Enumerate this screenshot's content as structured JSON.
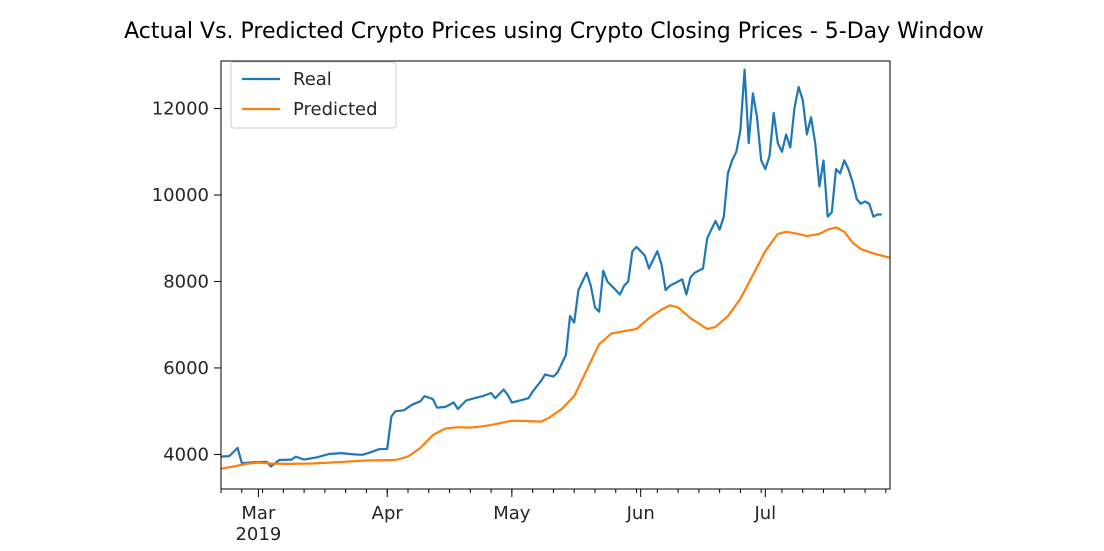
{
  "chart_data": {
    "type": "line",
    "title": "Actual Vs. Predicted Crypto Prices using Crypto Closing Prices - 5-Day Window",
    "xlabel": "",
    "ylabel": "",
    "xlim": [
      "2019-02-20",
      "2019-07-31"
    ],
    "ylim": [
      3200,
      13100
    ],
    "yticks": [
      4000,
      6000,
      8000,
      10000,
      12000
    ],
    "xticks": [
      {
        "date": "2019-03-01",
        "label": "Mar",
        "sublabel": "2019"
      },
      {
        "date": "2019-04-01",
        "label": "Apr"
      },
      {
        "date": "2019-05-01",
        "label": "May"
      },
      {
        "date": "2019-06-01",
        "label": "Jun"
      },
      {
        "date": "2019-07-01",
        "label": "Jul"
      }
    ],
    "grid": false,
    "legend": "top-left",
    "series": [
      {
        "name": "Real",
        "color": "#1f77b4",
        "points": [
          [
            "2019-02-20",
            3950
          ],
          [
            "2019-02-22",
            3960
          ],
          [
            "2019-02-24",
            4150
          ],
          [
            "2019-02-25",
            3800
          ],
          [
            "2019-02-28",
            3820
          ],
          [
            "2019-03-03",
            3830
          ],
          [
            "2019-03-04",
            3720
          ],
          [
            "2019-03-06",
            3870
          ],
          [
            "2019-03-09",
            3880
          ],
          [
            "2019-03-10",
            3950
          ],
          [
            "2019-03-12",
            3880
          ],
          [
            "2019-03-15",
            3930
          ],
          [
            "2019-03-18",
            4010
          ],
          [
            "2019-03-21",
            4030
          ],
          [
            "2019-03-24",
            4000
          ],
          [
            "2019-03-26",
            3990
          ],
          [
            "2019-03-28",
            4050
          ],
          [
            "2019-03-30",
            4120
          ],
          [
            "2019-04-01",
            4130
          ],
          [
            "2019-04-02",
            4880
          ],
          [
            "2019-04-03",
            5000
          ],
          [
            "2019-04-05",
            5020
          ],
          [
            "2019-04-07",
            5150
          ],
          [
            "2019-04-09",
            5230
          ],
          [
            "2019-04-10",
            5350
          ],
          [
            "2019-04-12",
            5280
          ],
          [
            "2019-04-13",
            5080
          ],
          [
            "2019-04-15",
            5100
          ],
          [
            "2019-04-17",
            5200
          ],
          [
            "2019-04-18",
            5050
          ],
          [
            "2019-04-20",
            5250
          ],
          [
            "2019-04-22",
            5300
          ],
          [
            "2019-04-24",
            5350
          ],
          [
            "2019-04-26",
            5420
          ],
          [
            "2019-04-27",
            5300
          ],
          [
            "2019-04-29",
            5500
          ],
          [
            "2019-04-30",
            5380
          ],
          [
            "2019-05-01",
            5200
          ],
          [
            "2019-05-03",
            5250
          ],
          [
            "2019-05-05",
            5300
          ],
          [
            "2019-05-06",
            5450
          ],
          [
            "2019-05-08",
            5700
          ],
          [
            "2019-05-09",
            5850
          ],
          [
            "2019-05-11",
            5800
          ],
          [
            "2019-05-12",
            5900
          ],
          [
            "2019-05-14",
            6300
          ],
          [
            "2019-05-15",
            7200
          ],
          [
            "2019-05-16",
            7050
          ],
          [
            "2019-05-17",
            7800
          ],
          [
            "2019-05-18",
            8000
          ],
          [
            "2019-05-19",
            8200
          ],
          [
            "2019-05-20",
            7900
          ],
          [
            "2019-05-21",
            7400
          ],
          [
            "2019-05-22",
            7300
          ],
          [
            "2019-05-23",
            8250
          ],
          [
            "2019-05-24",
            8000
          ],
          [
            "2019-05-25",
            7900
          ],
          [
            "2019-05-26",
            7800
          ],
          [
            "2019-05-27",
            7700
          ],
          [
            "2019-05-28",
            7900
          ],
          [
            "2019-05-29",
            8000
          ],
          [
            "2019-05-30",
            8700
          ],
          [
            "2019-05-31",
            8800
          ],
          [
            "2019-06-01",
            8700
          ],
          [
            "2019-06-02",
            8600
          ],
          [
            "2019-06-03",
            8300
          ],
          [
            "2019-06-04",
            8500
          ],
          [
            "2019-06-05",
            8700
          ],
          [
            "2019-06-06",
            8400
          ],
          [
            "2019-06-07",
            7800
          ],
          [
            "2019-06-08",
            7900
          ],
          [
            "2019-06-10",
            8000
          ],
          [
            "2019-06-11",
            8050
          ],
          [
            "2019-06-12",
            7700
          ],
          [
            "2019-06-13",
            8100
          ],
          [
            "2019-06-14",
            8200
          ],
          [
            "2019-06-16",
            8300
          ],
          [
            "2019-06-17",
            9000
          ],
          [
            "2019-06-18",
            9200
          ],
          [
            "2019-06-19",
            9400
          ],
          [
            "2019-06-20",
            9200
          ],
          [
            "2019-06-21",
            9500
          ],
          [
            "2019-06-22",
            10500
          ],
          [
            "2019-06-23",
            10800
          ],
          [
            "2019-06-24",
            11000
          ],
          [
            "2019-06-25",
            11500
          ],
          [
            "2019-06-26",
            12900
          ],
          [
            "2019-06-27",
            11200
          ],
          [
            "2019-06-28",
            12350
          ],
          [
            "2019-06-29",
            11800
          ],
          [
            "2019-06-30",
            10800
          ],
          [
            "2019-07-01",
            10600
          ],
          [
            "2019-07-02",
            10900
          ],
          [
            "2019-07-03",
            11900
          ],
          [
            "2019-07-04",
            11200
          ],
          [
            "2019-07-05",
            11000
          ],
          [
            "2019-07-06",
            11400
          ],
          [
            "2019-07-07",
            11100
          ],
          [
            "2019-07-08",
            12000
          ],
          [
            "2019-07-09",
            12500
          ],
          [
            "2019-07-10",
            12200
          ],
          [
            "2019-07-11",
            11400
          ],
          [
            "2019-07-12",
            11800
          ],
          [
            "2019-07-13",
            11200
          ],
          [
            "2019-07-14",
            10200
          ],
          [
            "2019-07-15",
            10800
          ],
          [
            "2019-07-16",
            9500
          ],
          [
            "2019-07-17",
            9600
          ],
          [
            "2019-07-18",
            10600
          ],
          [
            "2019-07-19",
            10500
          ],
          [
            "2019-07-20",
            10800
          ],
          [
            "2019-07-21",
            10600
          ],
          [
            "2019-07-22",
            10300
          ],
          [
            "2019-07-23",
            9900
          ],
          [
            "2019-07-24",
            9800
          ],
          [
            "2019-07-25",
            9850
          ],
          [
            "2019-07-26",
            9800
          ],
          [
            "2019-07-27",
            9500
          ],
          [
            "2019-07-28",
            9550
          ],
          [
            "2019-07-29",
            9550
          ]
        ]
      },
      {
        "name": "Predicted",
        "color": "#ff7f0e",
        "points": [
          [
            "2019-02-20",
            3670
          ],
          [
            "2019-02-23",
            3720
          ],
          [
            "2019-02-26",
            3780
          ],
          [
            "2019-03-01",
            3810
          ],
          [
            "2019-03-04",
            3790
          ],
          [
            "2019-03-08",
            3780
          ],
          [
            "2019-03-14",
            3790
          ],
          [
            "2019-03-20",
            3820
          ],
          [
            "2019-03-27",
            3860
          ],
          [
            "2019-04-03",
            3870
          ],
          [
            "2019-04-06",
            3950
          ],
          [
            "2019-04-09",
            4150
          ],
          [
            "2019-04-12",
            4450
          ],
          [
            "2019-04-15",
            4600
          ],
          [
            "2019-04-18",
            4630
          ],
          [
            "2019-04-21",
            4620
          ],
          [
            "2019-04-24",
            4650
          ],
          [
            "2019-04-27",
            4700
          ],
          [
            "2019-05-01",
            4780
          ],
          [
            "2019-05-05",
            4770
          ],
          [
            "2019-05-08",
            4760
          ],
          [
            "2019-05-10",
            4850
          ],
          [
            "2019-05-13",
            5050
          ],
          [
            "2019-05-16",
            5350
          ],
          [
            "2019-05-19",
            5950
          ],
          [
            "2019-05-22",
            6550
          ],
          [
            "2019-05-25",
            6800
          ],
          [
            "2019-05-28",
            6850
          ],
          [
            "2019-05-31",
            6900
          ],
          [
            "2019-06-03",
            7150
          ],
          [
            "2019-06-06",
            7350
          ],
          [
            "2019-06-08",
            7450
          ],
          [
            "2019-06-10",
            7400
          ],
          [
            "2019-06-13",
            7150
          ],
          [
            "2019-06-17",
            6900
          ],
          [
            "2019-06-19",
            6950
          ],
          [
            "2019-06-22",
            7200
          ],
          [
            "2019-06-25",
            7600
          ],
          [
            "2019-06-28",
            8150
          ],
          [
            "2019-07-01",
            8700
          ],
          [
            "2019-07-04",
            9100
          ],
          [
            "2019-07-06",
            9150
          ],
          [
            "2019-07-09",
            9100
          ],
          [
            "2019-07-11",
            9050
          ],
          [
            "2019-07-14",
            9100
          ],
          [
            "2019-07-16",
            9200
          ],
          [
            "2019-07-18",
            9250
          ],
          [
            "2019-07-20",
            9150
          ],
          [
            "2019-07-22",
            8900
          ],
          [
            "2019-07-24",
            8750
          ],
          [
            "2019-07-27",
            8650
          ],
          [
            "2019-07-31",
            8550
          ]
        ]
      }
    ]
  }
}
